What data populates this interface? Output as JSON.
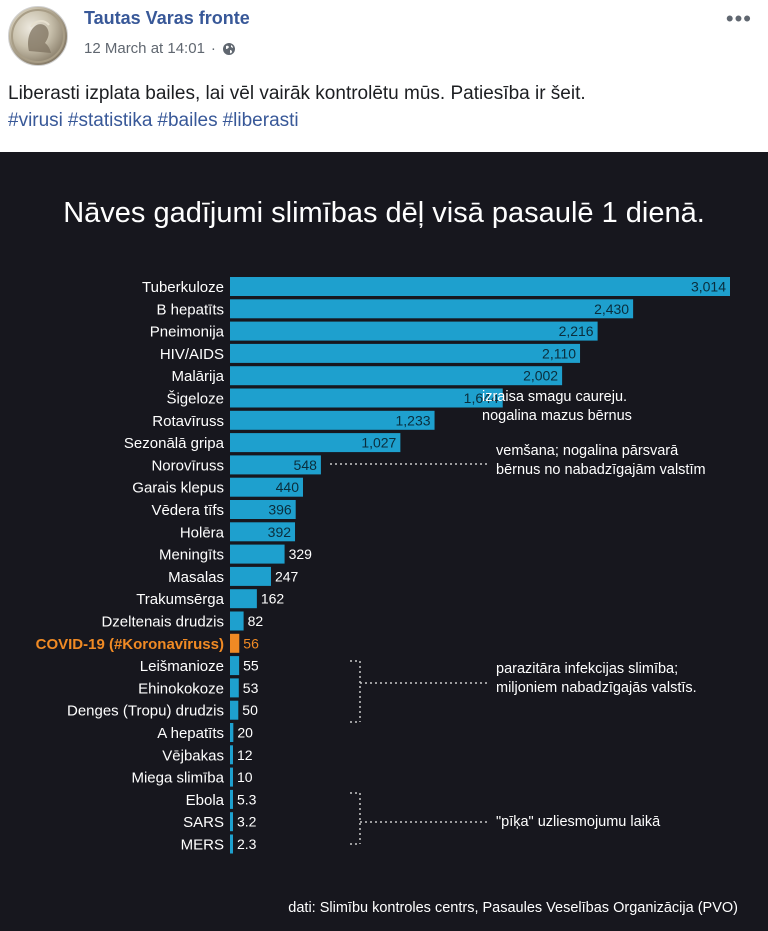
{
  "post": {
    "page_name": "Tautas Varas fronte",
    "timestamp": "12 March at 14:01",
    "privacy_icon": "globe-icon",
    "more_icon": "more-options-icon",
    "text": "Liberasti izplata bailes, lai vēl vairāk kontrolētu mūs. Patiesība ir šeit.",
    "hashtags": [
      "#virusi",
      "#statistika",
      "#bailes",
      "#liberasti"
    ]
  },
  "chart_data": {
    "type": "bar",
    "orientation": "horizontal",
    "title": "Nāves gadījumi slimības dēļ visā pasaulē 1 dienā.",
    "categories": [
      "Tuberkuloze",
      "B hepatīts",
      "Pneimonija",
      "HIV/AIDS",
      "Malārija",
      "Šigeloze",
      "Rotavīruss",
      "Sezonālā gripa",
      "Norovīruss",
      "Garais klepus",
      "Vēdera tīfs",
      "Holēra",
      "Meningīts",
      "Masalas",
      "Trakumsērga",
      "Dzeltenais drudzis",
      "COVID-19 (#Koronavīruss)",
      "Leišmanioze",
      "Ehinokokoze",
      "Denges (Tropu) drudzis",
      "A hepatīts",
      "Vējbakas",
      "Miega slimība",
      "Ebola",
      "SARS",
      "MERS"
    ],
    "values": [
      3014,
      2430,
      2216,
      2110,
      2002,
      1644,
      1233,
      1027,
      548,
      440,
      396,
      392,
      329,
      247,
      162,
      82,
      56,
      55,
      53,
      50,
      20,
      12,
      10,
      5.3,
      3.2,
      2.3
    ],
    "value_labels": [
      "3,014",
      "2,430",
      "2,216",
      "2,110",
      "2,002",
      "1,644",
      "1,233",
      "1,027",
      "548",
      "440",
      "396",
      "392",
      "329",
      "247",
      "162",
      "82",
      "56",
      "55",
      "53",
      "50",
      "20",
      "12",
      "10",
      "5.3",
      "3.2",
      "2.3"
    ],
    "highlight_index": 16,
    "annotations": [
      {
        "lines": [
          "izraisa smagu caureju.",
          "nogalina mazus bērnus"
        ]
      },
      {
        "lines": [
          "vemšana; nogalina pārsvarā",
          "bērnus no nabadzīgajām valstīm"
        ]
      },
      {
        "lines": [
          "parazitāra infekcijas slimība;",
          "miljoniem nabadzīgajās valstīs."
        ]
      },
      {
        "lines": [
          "\"pīķa\" uzliesmojumu laikā"
        ]
      }
    ],
    "source": "dati: Slimību kontroles centrs, Pasaules Veselības Organizācija (PVO)",
    "colors": {
      "background": "#17171e",
      "bar": "#1fa8d8",
      "highlight": "#f08a24",
      "text": "#ffffff"
    },
    "grid": false,
    "legend": "none"
  }
}
